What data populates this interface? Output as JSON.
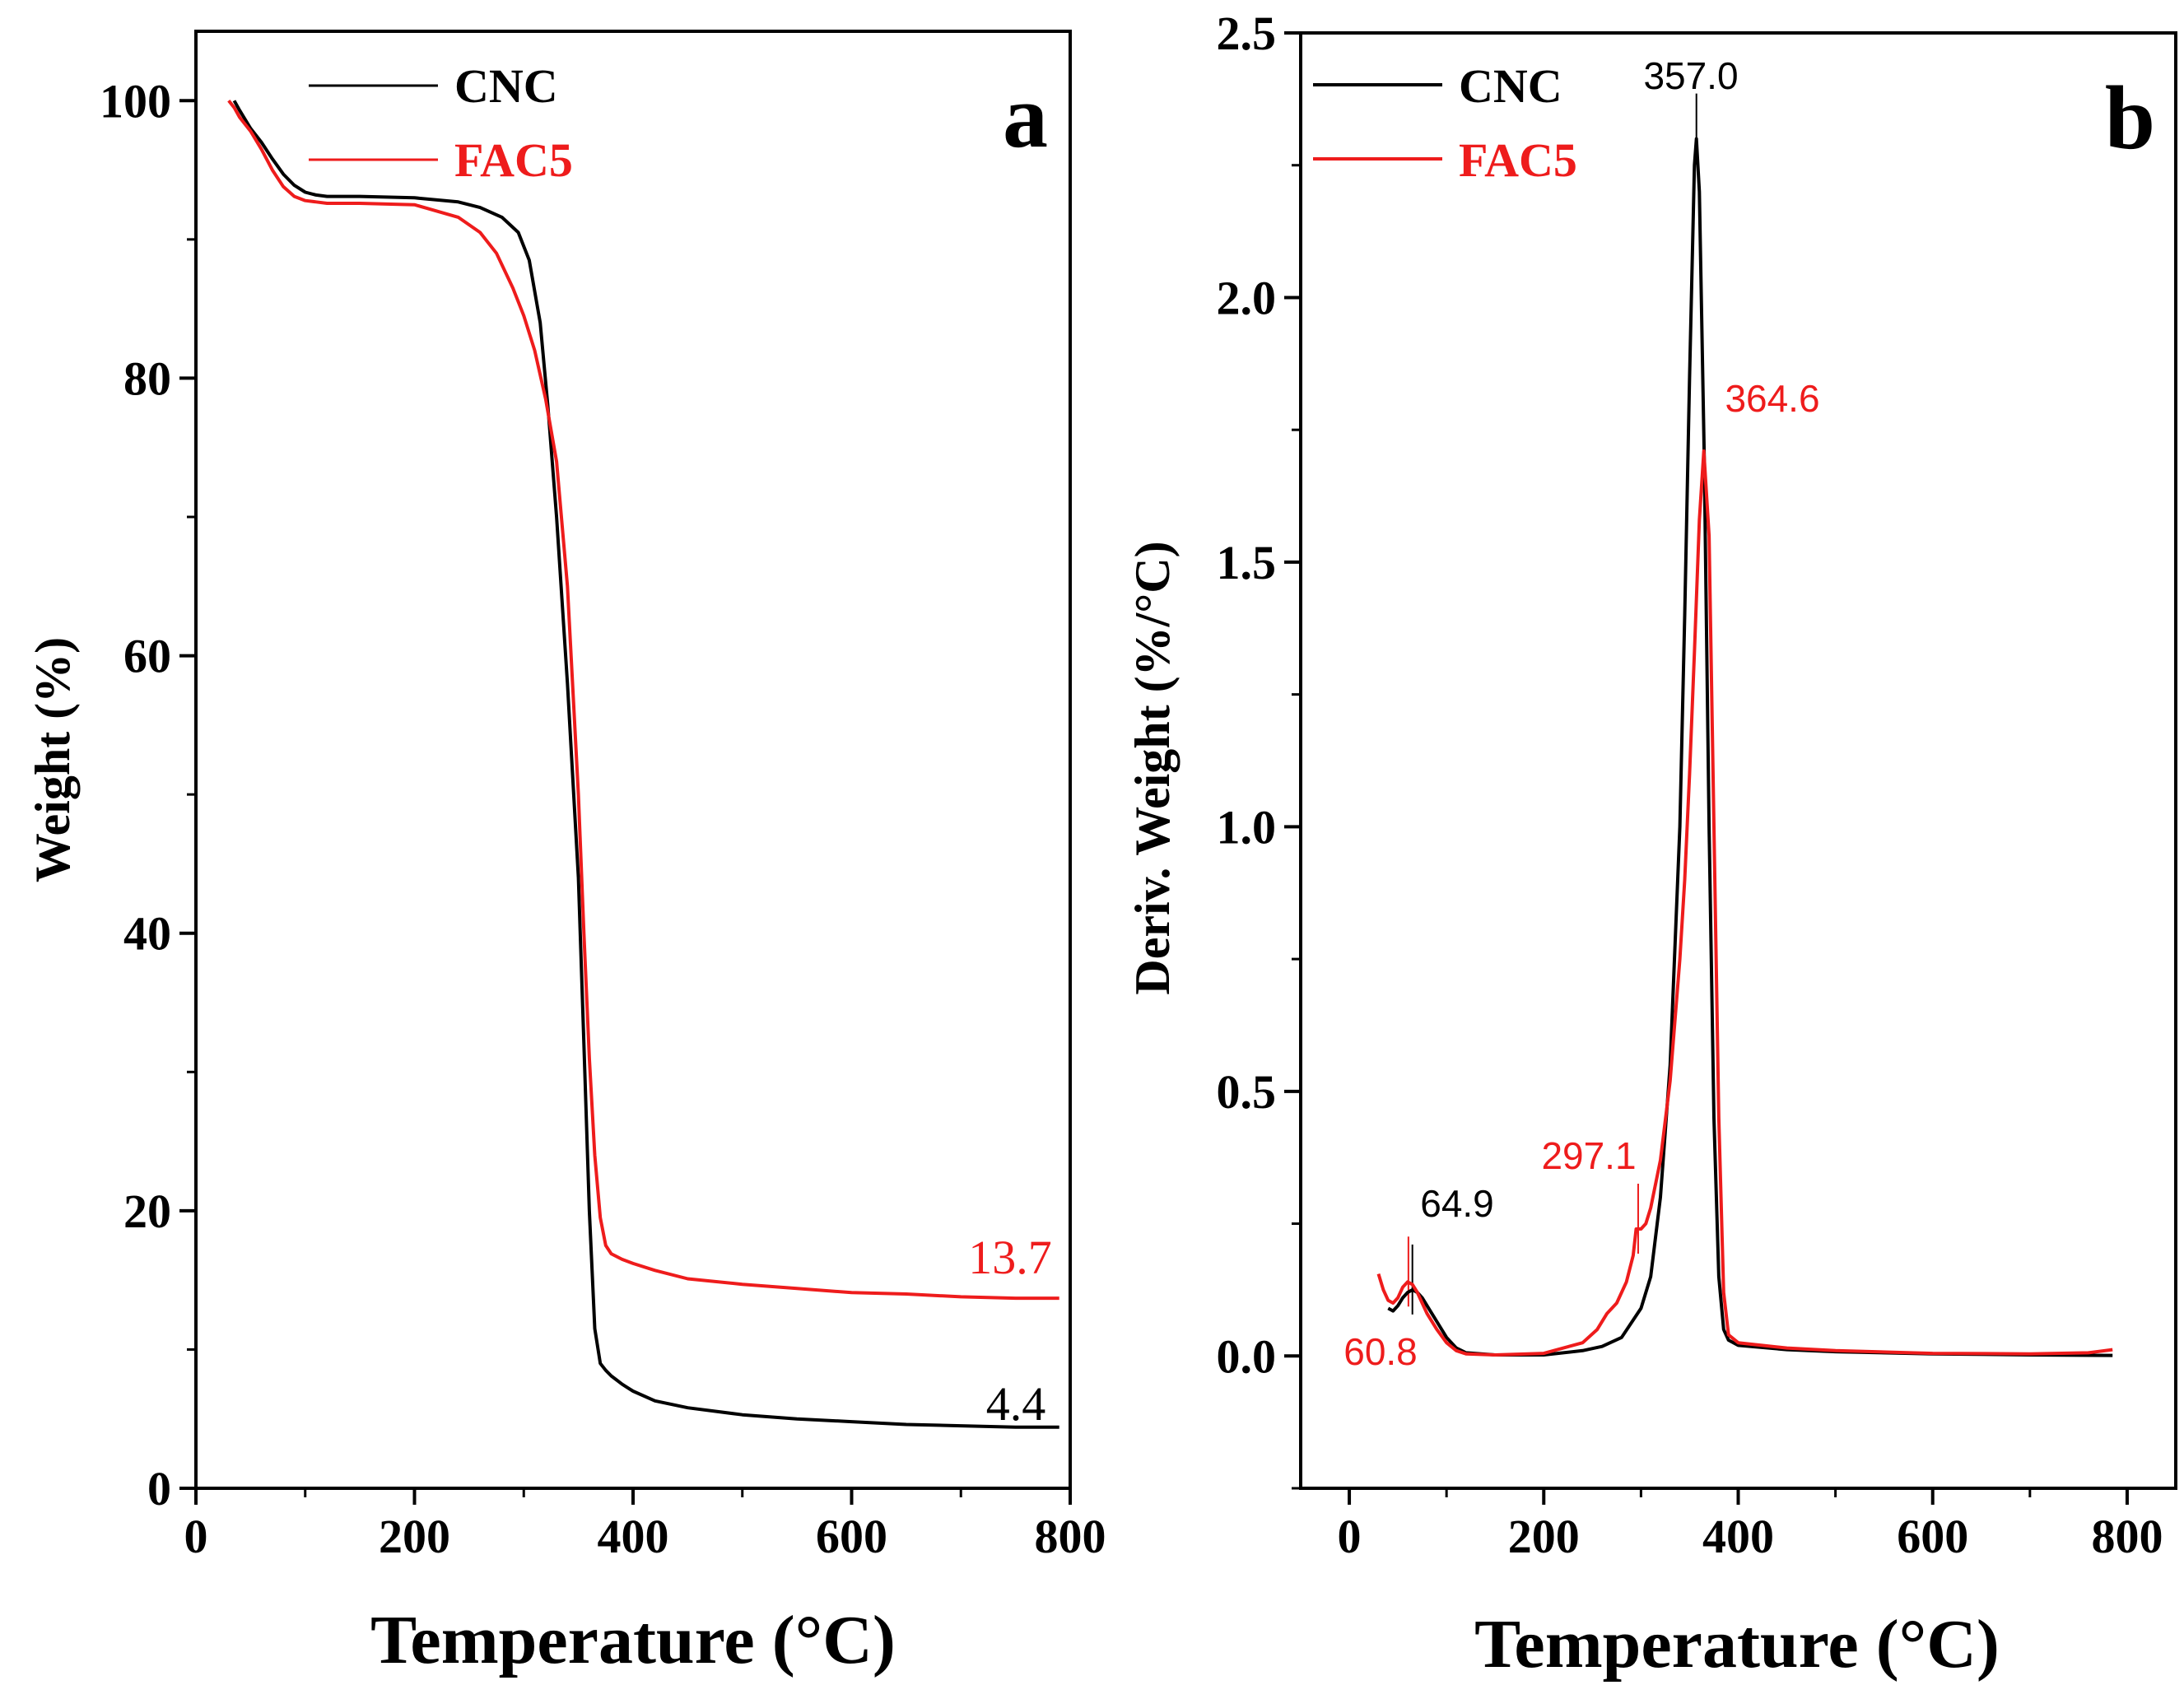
{
  "chart_data": [
    {
      "type": "line",
      "panel_label": "a",
      "xlabel": "Temperature (°C)",
      "ylabel": "Weight (%)",
      "xlim": [
        0,
        800
      ],
      "ylim": [
        0,
        105
      ],
      "xticks": [
        0,
        200,
        400,
        600,
        800
      ],
      "yticks": [
        0,
        20,
        40,
        60,
        80,
        100
      ],
      "legend": {
        "placement": "top-left"
      },
      "series": [
        {
          "name": "CNC",
          "color": "#000000",
          "x": [
            35,
            40,
            50,
            60,
            70,
            80,
            90,
            100,
            110,
            120,
            150,
            200,
            240,
            260,
            280,
            295,
            305,
            315,
            322,
            330,
            340,
            350,
            355,
            360,
            365,
            370,
            375,
            380,
            385,
            390,
            400,
            420,
            450,
            500,
            550,
            600,
            650,
            700,
            750,
            790
          ],
          "y": [
            100,
            99.3,
            98,
            97,
            95.8,
            94.7,
            93.9,
            93.4,
            93.2,
            93.1,
            93.1,
            93.0,
            92.7,
            92.3,
            91.6,
            90.5,
            88.5,
            84,
            78,
            70,
            58,
            44,
            32,
            20,
            11.5,
            9,
            8.5,
            8.1,
            7.8,
            7.5,
            7.0,
            6.3,
            5.8,
            5.3,
            5.0,
            4.8,
            4.6,
            4.5,
            4.4,
            4.4
          ],
          "end_label": "4.4"
        },
        {
          "name": "FAC5",
          "color": "#ee1c1c",
          "x": [
            30,
            35,
            40,
            50,
            60,
            70,
            80,
            90,
            100,
            110,
            120,
            150,
            200,
            240,
            260,
            275,
            290,
            300,
            310,
            320,
            330,
            340,
            350,
            355,
            360,
            365,
            370,
            375,
            380,
            385,
            390,
            400,
            420,
            450,
            500,
            550,
            600,
            650,
            700,
            750,
            790
          ],
          "y": [
            100,
            99.5,
            98.8,
            97.8,
            96.5,
            95,
            93.8,
            93.1,
            92.8,
            92.7,
            92.6,
            92.6,
            92.5,
            91.6,
            90.5,
            89,
            86.5,
            84.5,
            82,
            78.5,
            74,
            65,
            50,
            40,
            31,
            24,
            19.5,
            17.5,
            16.9,
            16.7,
            16.5,
            16.2,
            15.7,
            15.1,
            14.7,
            14.4,
            14.1,
            14.0,
            13.8,
            13.7,
            13.7
          ],
          "end_label": "13.7"
        }
      ]
    },
    {
      "type": "line",
      "panel_label": "b",
      "xlabel": "Temperature (°C)",
      "ylabel": "Deriv. Weight (%/°C)",
      "xlim": [
        -50,
        850
      ],
      "ylim": [
        -0.25,
        2.5
      ],
      "xticks": [
        0,
        200,
        400,
        600,
        800
      ],
      "yticks": [
        0.0,
        0.5,
        1.0,
        1.5,
        2.0,
        2.5
      ],
      "legend": {
        "placement": "top-left"
      },
      "series": [
        {
          "name": "CNC",
          "color": "#000000",
          "x": [
            40,
            45,
            50,
            55,
            60,
            65,
            70,
            75,
            80,
            90,
            100,
            110,
            120,
            150,
            200,
            240,
            260,
            280,
            300,
            310,
            320,
            330,
            340,
            345,
            350,
            355,
            357,
            360,
            365,
            370,
            375,
            380,
            385,
            390,
            400,
            450,
            500,
            600,
            700,
            785
          ],
          "y": [
            0.09,
            0.085,
            0.095,
            0.11,
            0.12,
            0.125,
            0.12,
            0.11,
            0.095,
            0.065,
            0.035,
            0.015,
            0.006,
            0.002,
            0.002,
            0.01,
            0.018,
            0.035,
            0.09,
            0.15,
            0.3,
            0.55,
            1.0,
            1.4,
            1.85,
            2.25,
            2.3,
            2.2,
            1.7,
            1.0,
            0.45,
            0.15,
            0.05,
            0.03,
            0.02,
            0.012,
            0.008,
            0.004,
            0.002,
            0.001
          ]
        },
        {
          "name": "FAC5",
          "color": "#ee1c1c",
          "x": [
            30,
            35,
            40,
            45,
            50,
            55,
            60,
            65,
            70,
            75,
            80,
            90,
            100,
            110,
            120,
            150,
            200,
            240,
            255,
            265,
            275,
            285,
            292,
            295,
            297,
            300,
            305,
            310,
            320,
            330,
            340,
            345,
            350,
            355,
            360,
            364.6,
            370,
            375,
            380,
            385,
            390,
            400,
            450,
            500,
            600,
            700,
            760,
            785
          ],
          "y": [
            0.155,
            0.125,
            0.105,
            0.1,
            0.11,
            0.13,
            0.14,
            0.135,
            0.12,
            0.1,
            0.08,
            0.05,
            0.025,
            0.01,
            0.004,
            0.002,
            0.005,
            0.025,
            0.05,
            0.08,
            0.1,
            0.14,
            0.19,
            0.24,
            0.24,
            0.24,
            0.25,
            0.28,
            0.37,
            0.52,
            0.75,
            0.9,
            1.1,
            1.33,
            1.58,
            1.71,
            1.55,
            1.0,
            0.45,
            0.12,
            0.04,
            0.025,
            0.015,
            0.01,
            0.005,
            0.004,
            0.006,
            0.012
          ]
        }
      ],
      "peak_labels": [
        {
          "text": "357.0",
          "x": 357.0,
          "y": 2.3,
          "color": "#000000"
        },
        {
          "text": "364.6",
          "x": 364.6,
          "y": 1.71,
          "color": "#ee1c1c"
        },
        {
          "text": "297.1",
          "x": 297.1,
          "y": 0.24,
          "color": "#ee1c1c"
        },
        {
          "text": "64.9",
          "x": 64.9,
          "y": 0.125,
          "color": "#000000"
        },
        {
          "text": "60.8",
          "x": 60.8,
          "y": 0.14,
          "color": "#ee1c1c"
        }
      ]
    }
  ]
}
